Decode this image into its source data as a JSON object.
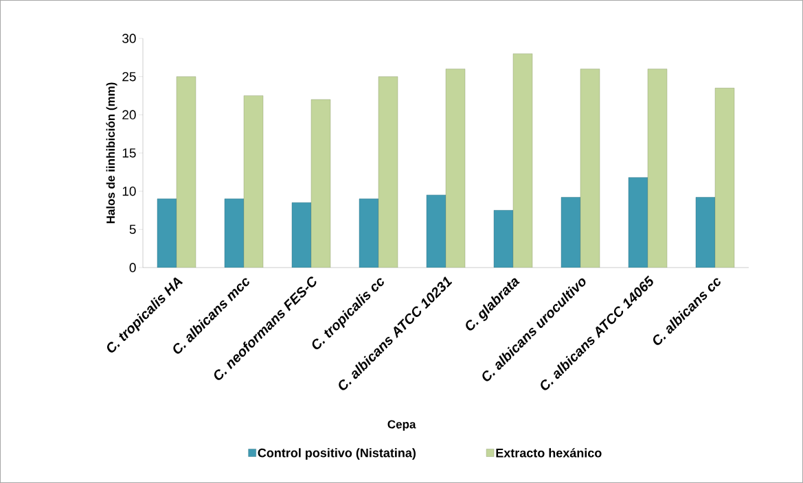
{
  "chart_data": {
    "type": "bar",
    "xlabel": "Cepa",
    "ylabel": "Halos de iinhibición (mm)",
    "categories": [
      "C. tropicalis HA",
      "C. albicans mcc",
      "C. neoformans FES-C",
      "C. tropicalis cc",
      "C. albicans ATCC 10231",
      "C. glabrata",
      "C. albicans urocultivo",
      "C. albicans ATCC 14065",
      "C. albicans cc"
    ],
    "series": [
      {
        "name": "Control positivo (Nistatina)",
        "color": "#3f9ab2",
        "values": [
          9,
          9,
          8.5,
          9,
          9.5,
          7.5,
          9.2,
          11.8,
          9.2
        ]
      },
      {
        "name": "Extracto hexánico",
        "color": "#c3d69b",
        "values": [
          25,
          22.5,
          22,
          25,
          26,
          28,
          26,
          26,
          23.5
        ]
      }
    ],
    "ylim": [
      0,
      30
    ],
    "yticks": [
      0,
      5,
      10,
      15,
      20,
      25,
      30
    ],
    "grid": false,
    "legend": "bottom"
  }
}
